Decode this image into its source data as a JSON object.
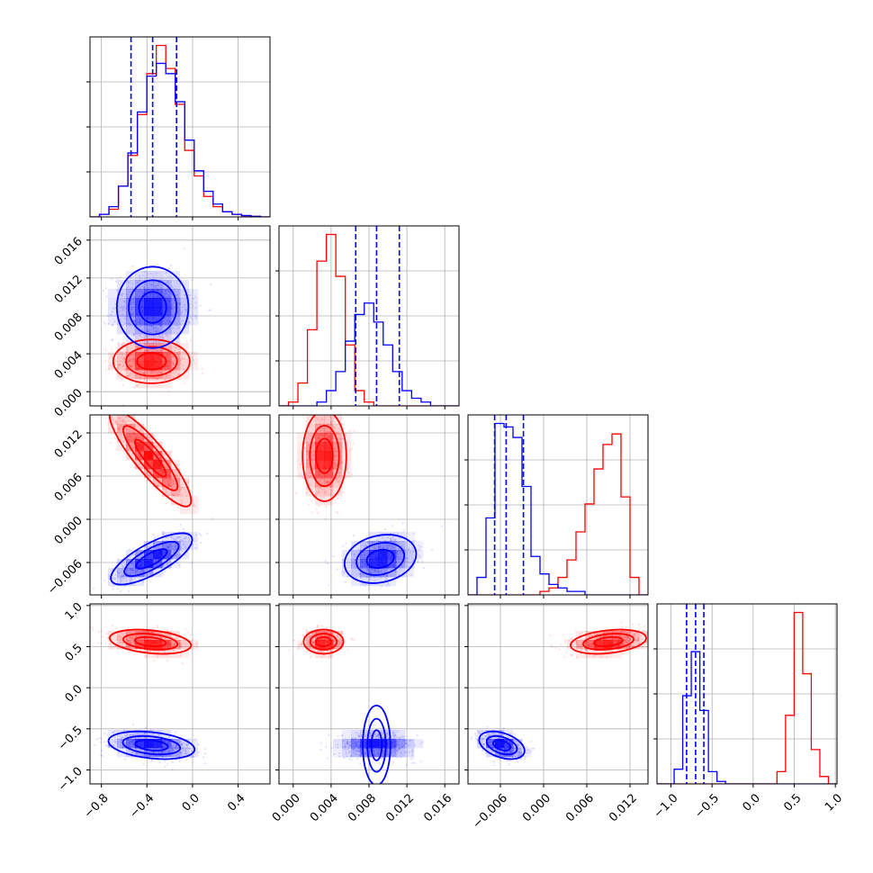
{
  "chart_data": {
    "type": "corner",
    "colors": {
      "red": "#ff0000",
      "blue": "#0000ff",
      "grid": "#b0b0b0"
    },
    "grid": true,
    "params": [
      {
        "index": 0,
        "range": [
          -0.9,
          0.68
        ],
        "ticks": [
          -0.8,
          -0.4,
          0.0,
          0.4
        ],
        "tick_labels": [
          "−0.8",
          "−0.4",
          "0.0",
          "0.4"
        ]
      },
      {
        "index": 1,
        "range": [
          -0.0015,
          0.0175
        ],
        "ticks": [
          0.0,
          0.004,
          0.008,
          0.012,
          0.016
        ],
        "tick_labels": [
          "0.000",
          "0.004",
          "0.008",
          "0.012",
          "0.016"
        ]
      },
      {
        "index": 2,
        "range": [
          -0.0105,
          0.0145
        ],
        "ticks": [
          -0.006,
          0.0,
          0.006,
          0.012
        ],
        "tick_labels": [
          "−0.006",
          "0.000",
          "0.006",
          "0.012"
        ]
      },
      {
        "index": 3,
        "range": [
          -1.17,
          1.02
        ],
        "ticks": [
          -1.0,
          -0.5,
          0.0,
          0.5,
          1.0
        ],
        "tick_labels": [
          "−1.0",
          "−0.5",
          "0.0",
          "0.5",
          "1.0"
        ]
      }
    ],
    "series": [
      {
        "name": "",
        "color": "#ff0000",
        "mean": [
          -0.36,
          0.0032,
          0.0085,
          0.55
        ],
        "sd": [
          0.19,
          0.0012,
          0.0032,
          0.1
        ]
      },
      {
        "name": "",
        "color": "#0000ff",
        "mean": [
          -0.35,
          0.009,
          -0.005,
          -0.7
        ],
        "sd": [
          0.19,
          0.0019,
          0.0017,
          0.1
        ]
      }
    ],
    "quantile_lines": {
      "color": "#0000ff",
      "values": [
        [
          -0.54,
          -0.35,
          -0.14
        ],
        [
          0.0066,
          0.0088,
          0.0112
        ],
        [
          -0.0068,
          -0.0052,
          -0.0028
        ],
        [
          -0.81,
          -0.7,
          -0.6
        ]
      ]
    },
    "histograms": [
      {
        "bins": [
          -0.9,
          0.68
        ],
        "red": [
          0,
          1,
          3,
          12,
          24,
          40,
          56,
          67,
          58,
          44,
          26,
          16,
          8,
          4,
          2,
          1,
          0.5,
          0.2,
          0
        ],
        "blue": [
          0,
          1,
          4,
          12,
          25,
          41,
          55,
          60,
          56,
          45,
          30,
          18,
          10,
          5,
          2,
          1,
          0.5,
          0.2,
          0
        ]
      },
      {
        "bins": [
          -0.0015,
          0.0175
        ],
        "red": [
          0,
          1,
          6,
          20,
          38,
          45,
          34,
          16,
          4,
          1,
          0,
          0,
          0,
          0,
          0,
          0,
          0,
          0,
          0
        ],
        "blue": [
          0,
          0,
          0,
          0,
          1,
          4,
          9,
          17,
          24,
          27,
          22,
          16,
          9,
          4,
          2,
          1,
          0,
          0,
          0
        ]
      },
      {
        "bins": [
          -0.0105,
          0.0145
        ],
        "red": [
          0,
          0,
          0,
          0,
          0,
          0,
          0,
          0,
          1,
          2,
          5,
          10,
          18,
          26,
          36,
          43,
          46,
          28,
          5,
          0
        ],
        "blue": [
          0,
          5,
          22,
          49,
          48,
          45,
          31,
          11,
          6,
          3,
          2,
          1,
          1,
          0,
          0,
          0,
          0,
          0,
          0,
          0
        ]
      },
      {
        "bins": [
          -1.17,
          1.02
        ],
        "red": [
          0,
          0,
          0,
          0,
          0,
          0,
          0,
          0,
          0,
          0,
          0,
          0,
          0,
          0,
          5,
          28,
          70,
          45,
          14,
          3,
          0
        ],
        "blue": [
          0,
          0,
          6,
          36,
          54,
          30,
          5,
          1,
          0,
          0,
          0,
          0,
          0,
          0,
          0,
          0,
          0,
          0,
          0,
          0,
          0
        ]
      }
    ],
    "scatter_panels": [
      {
        "x": 0,
        "y": 1,
        "red": {
          "mean": [
            -0.36,
            0.0032
          ],
          "sd": [
            0.16,
            0.0011
          ],
          "rho": 0.0
        },
        "blue": {
          "mean": [
            -0.35,
            0.0089
          ],
          "sd": [
            0.17,
            0.0018
          ],
          "rho": 0.0
        }
      },
      {
        "x": 0,
        "y": 2,
        "red": {
          "mean": [
            -0.37,
            0.0085
          ],
          "sd": [
            0.17,
            0.0032
          ],
          "rho": -0.88
        },
        "blue": {
          "mean": [
            -0.36,
            -0.0055
          ],
          "sd": [
            0.17,
            0.0017
          ],
          "rho": 0.75
        }
      },
      {
        "x": 1,
        "y": 2,
        "red": {
          "mean": [
            0.0033,
            0.0088
          ],
          "sd": [
            0.0011,
            0.003
          ],
          "rho": 0.0
        },
        "blue": {
          "mean": [
            0.0092,
            -0.0055
          ],
          "sd": [
            0.0018,
            0.0016
          ],
          "rho": 0.2
        }
      },
      {
        "x": 0,
        "y": 3,
        "red": {
          "mean": [
            -0.37,
            0.56
          ],
          "sd": [
            0.17,
            0.07
          ],
          "rho": -0.3
        },
        "blue": {
          "mean": [
            -0.36,
            -0.7
          ],
          "sd": [
            0.18,
            0.08
          ],
          "rho": -0.3
        }
      },
      {
        "x": 1,
        "y": 3,
        "red": {
          "mean": [
            0.0032,
            0.56
          ],
          "sd": [
            0.001,
            0.07
          ],
          "rho": 0.0
        },
        "blue": {
          "mean": [
            0.0088,
            -0.7
          ],
          "sd": [
            0.002,
            0.08
          ],
          "rho": 0.0
        }
      },
      {
        "x": 2,
        "y": 3,
        "red": {
          "mean": [
            0.009,
            0.56
          ],
          "sd": [
            0.0025,
            0.07
          ],
          "rho": 0.3
        },
        "blue": {
          "mean": [
            -0.0058,
            -0.7
          ],
          "sd": [
            0.0015,
            0.08
          ],
          "rho": -0.4
        }
      }
    ],
    "contour_levels_sigma": [
      0.8,
      1.4,
      2.1
    ]
  }
}
